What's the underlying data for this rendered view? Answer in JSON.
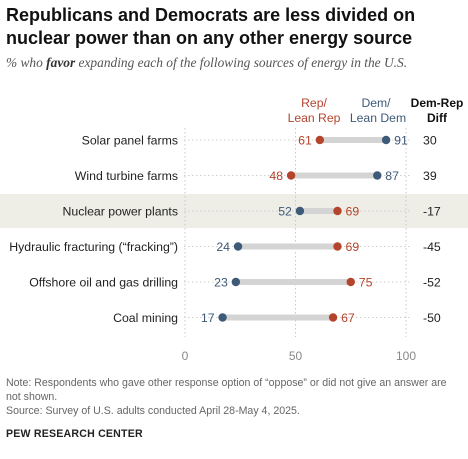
{
  "title": "Republicans and Democrats are less divided on nuclear power than on any other energy source",
  "subtitle_pre": "% who ",
  "subtitle_em": "favor",
  "subtitle_post": " expanding each of the following sources of energy in the U.S.",
  "note": "Note: Respondents who gave other response option of “oppose” or did not give an answer are not shown.",
  "source": "Source: Survey of U.S. adults conducted April 28-May 4, 2025.",
  "brand": "PEW RESEARCH CENTER",
  "chart_data": {
    "type": "dot",
    "legend": {
      "rep": [
        "Rep/",
        "Lean Rep"
      ],
      "dem": [
        "Dem/",
        "Lean Dem"
      ],
      "diff": [
        "Dem-Rep",
        "Diff"
      ]
    },
    "categories": [
      "Solar panel farms",
      "Wind turbine farms",
      "Nuclear power plants",
      "Hydraulic fracturing (“fracking”)",
      "Offshore oil and gas drilling",
      "Coal mining"
    ],
    "series": [
      {
        "name": "Rep/Lean Rep",
        "color": "#b5442c",
        "values": [
          61,
          48,
          69,
          69,
          75,
          67
        ]
      },
      {
        "name": "Dem/Lean Dem",
        "color": "#3d5a78",
        "values": [
          91,
          87,
          52,
          24,
          23,
          17
        ]
      }
    ],
    "diff": [
      "30",
      "39",
      "-17",
      "-45",
      "-52",
      "-50"
    ],
    "highlight": "Nuclear power plants",
    "xticks": [
      0,
      50,
      100
    ],
    "xlim": [
      0,
      100
    ]
  }
}
